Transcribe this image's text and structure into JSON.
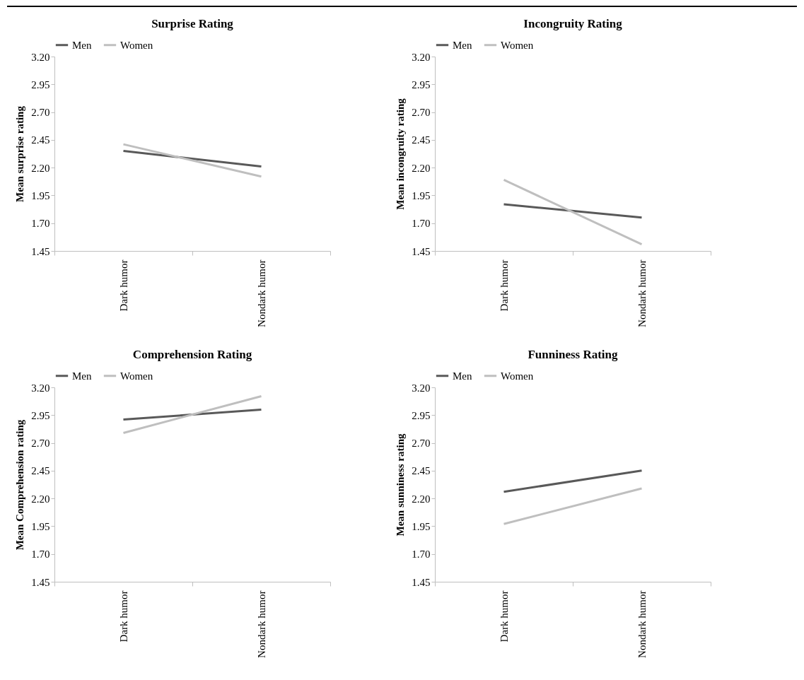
{
  "chart_data": [
    {
      "type": "line",
      "title": "Surprise Rating",
      "ylabel": "Mean surprise rating",
      "categories": [
        "Dark humor",
        "Nondark humor"
      ],
      "series": [
        {
          "name": "Men",
          "color": "#595959",
          "values": [
            2.35,
            2.21
          ]
        },
        {
          "name": "Women",
          "color": "#bfbfbf",
          "values": [
            2.41,
            2.12
          ]
        }
      ],
      "ylim": [
        1.45,
        3.2
      ],
      "yticks": [
        {
          "value": 1.45,
          "label": "1.45"
        },
        {
          "value": 1.7,
          "label": "1.70"
        },
        {
          "value": 1.95,
          "label": "1.95"
        },
        {
          "value": 2.2,
          "label": "2.20"
        },
        {
          "value": 2.45,
          "label": "2.45"
        },
        {
          "value": 2.7,
          "label": "2.70"
        },
        {
          "value": 2.95,
          "label": "2.95"
        },
        {
          "value": 3.2,
          "label": "3.20"
        }
      ],
      "legend": "top",
      "grid": false
    },
    {
      "type": "line",
      "title": "Incongruity Rating",
      "ylabel": "Mean incongruity rating",
      "categories": [
        "Dark humor",
        "Nondark humor"
      ],
      "series": [
        {
          "name": "Men",
          "color": "#595959",
          "values": [
            1.87,
            1.75
          ]
        },
        {
          "name": "Women",
          "color": "#bfbfbf",
          "values": [
            2.09,
            1.51
          ]
        }
      ],
      "ylim": [
        1.45,
        3.2
      ],
      "yticks": [
        {
          "value": 1.45,
          "label": "1.45"
        },
        {
          "value": 1.7,
          "label": "1.70"
        },
        {
          "value": 1.95,
          "label": "1.95"
        },
        {
          "value": 2.2,
          "label": "2.20"
        },
        {
          "value": 2.45,
          "label": "2.45"
        },
        {
          "value": 2.7,
          "label": "2.70"
        },
        {
          "value": 2.95,
          "label": "2.95"
        },
        {
          "value": 3.2,
          "label": "3.20"
        }
      ],
      "legend": "top",
      "grid": false
    },
    {
      "type": "line",
      "title": "Comprehension Rating",
      "ylabel": "Mean Comprehension rating",
      "categories": [
        "Dark humor",
        "Nondark humor"
      ],
      "series": [
        {
          "name": "Men",
          "color": "#595959",
          "values": [
            2.91,
            3.0
          ]
        },
        {
          "name": "Women",
          "color": "#bfbfbf",
          "values": [
            2.79,
            3.12
          ]
        }
      ],
      "ylim": [
        1.45,
        3.2
      ],
      "yticks": [
        {
          "value": 1.45,
          "label": "1.45"
        },
        {
          "value": 1.7,
          "label": "1.70"
        },
        {
          "value": 1.95,
          "label": "1.95"
        },
        {
          "value": 2.2,
          "label": "2.20"
        },
        {
          "value": 2.45,
          "label": "2.45"
        },
        {
          "value": 2.7,
          "label": "2.70"
        },
        {
          "value": 2.95,
          "label": "2.95"
        },
        {
          "value": 3.2,
          "label": "3.20"
        }
      ],
      "legend": "top",
      "grid": false
    },
    {
      "type": "line",
      "title": "Funniness Rating",
      "ylabel": "Mean sunniness rating",
      "categories": [
        "Dark humor",
        "Nondark humor"
      ],
      "series": [
        {
          "name": "Men",
          "color": "#595959",
          "values": [
            2.26,
            2.45
          ]
        },
        {
          "name": "Women",
          "color": "#bfbfbf",
          "values": [
            1.97,
            2.29
          ]
        }
      ],
      "ylim": [
        1.45,
        3.2
      ],
      "yticks": [
        {
          "value": 1.45,
          "label": "1.45"
        },
        {
          "value": 1.7,
          "label": "1.70"
        },
        {
          "value": 1.95,
          "label": "1.95"
        },
        {
          "value": 2.2,
          "label": "2.20"
        },
        {
          "value": 2.45,
          "label": "2.45"
        },
        {
          "value": 2.7,
          "label": "2.70"
        },
        {
          "value": 2.95,
          "label": "2.95"
        },
        {
          "value": 3.2,
          "label": "3.20"
        }
      ],
      "legend": "top",
      "grid": false
    }
  ]
}
